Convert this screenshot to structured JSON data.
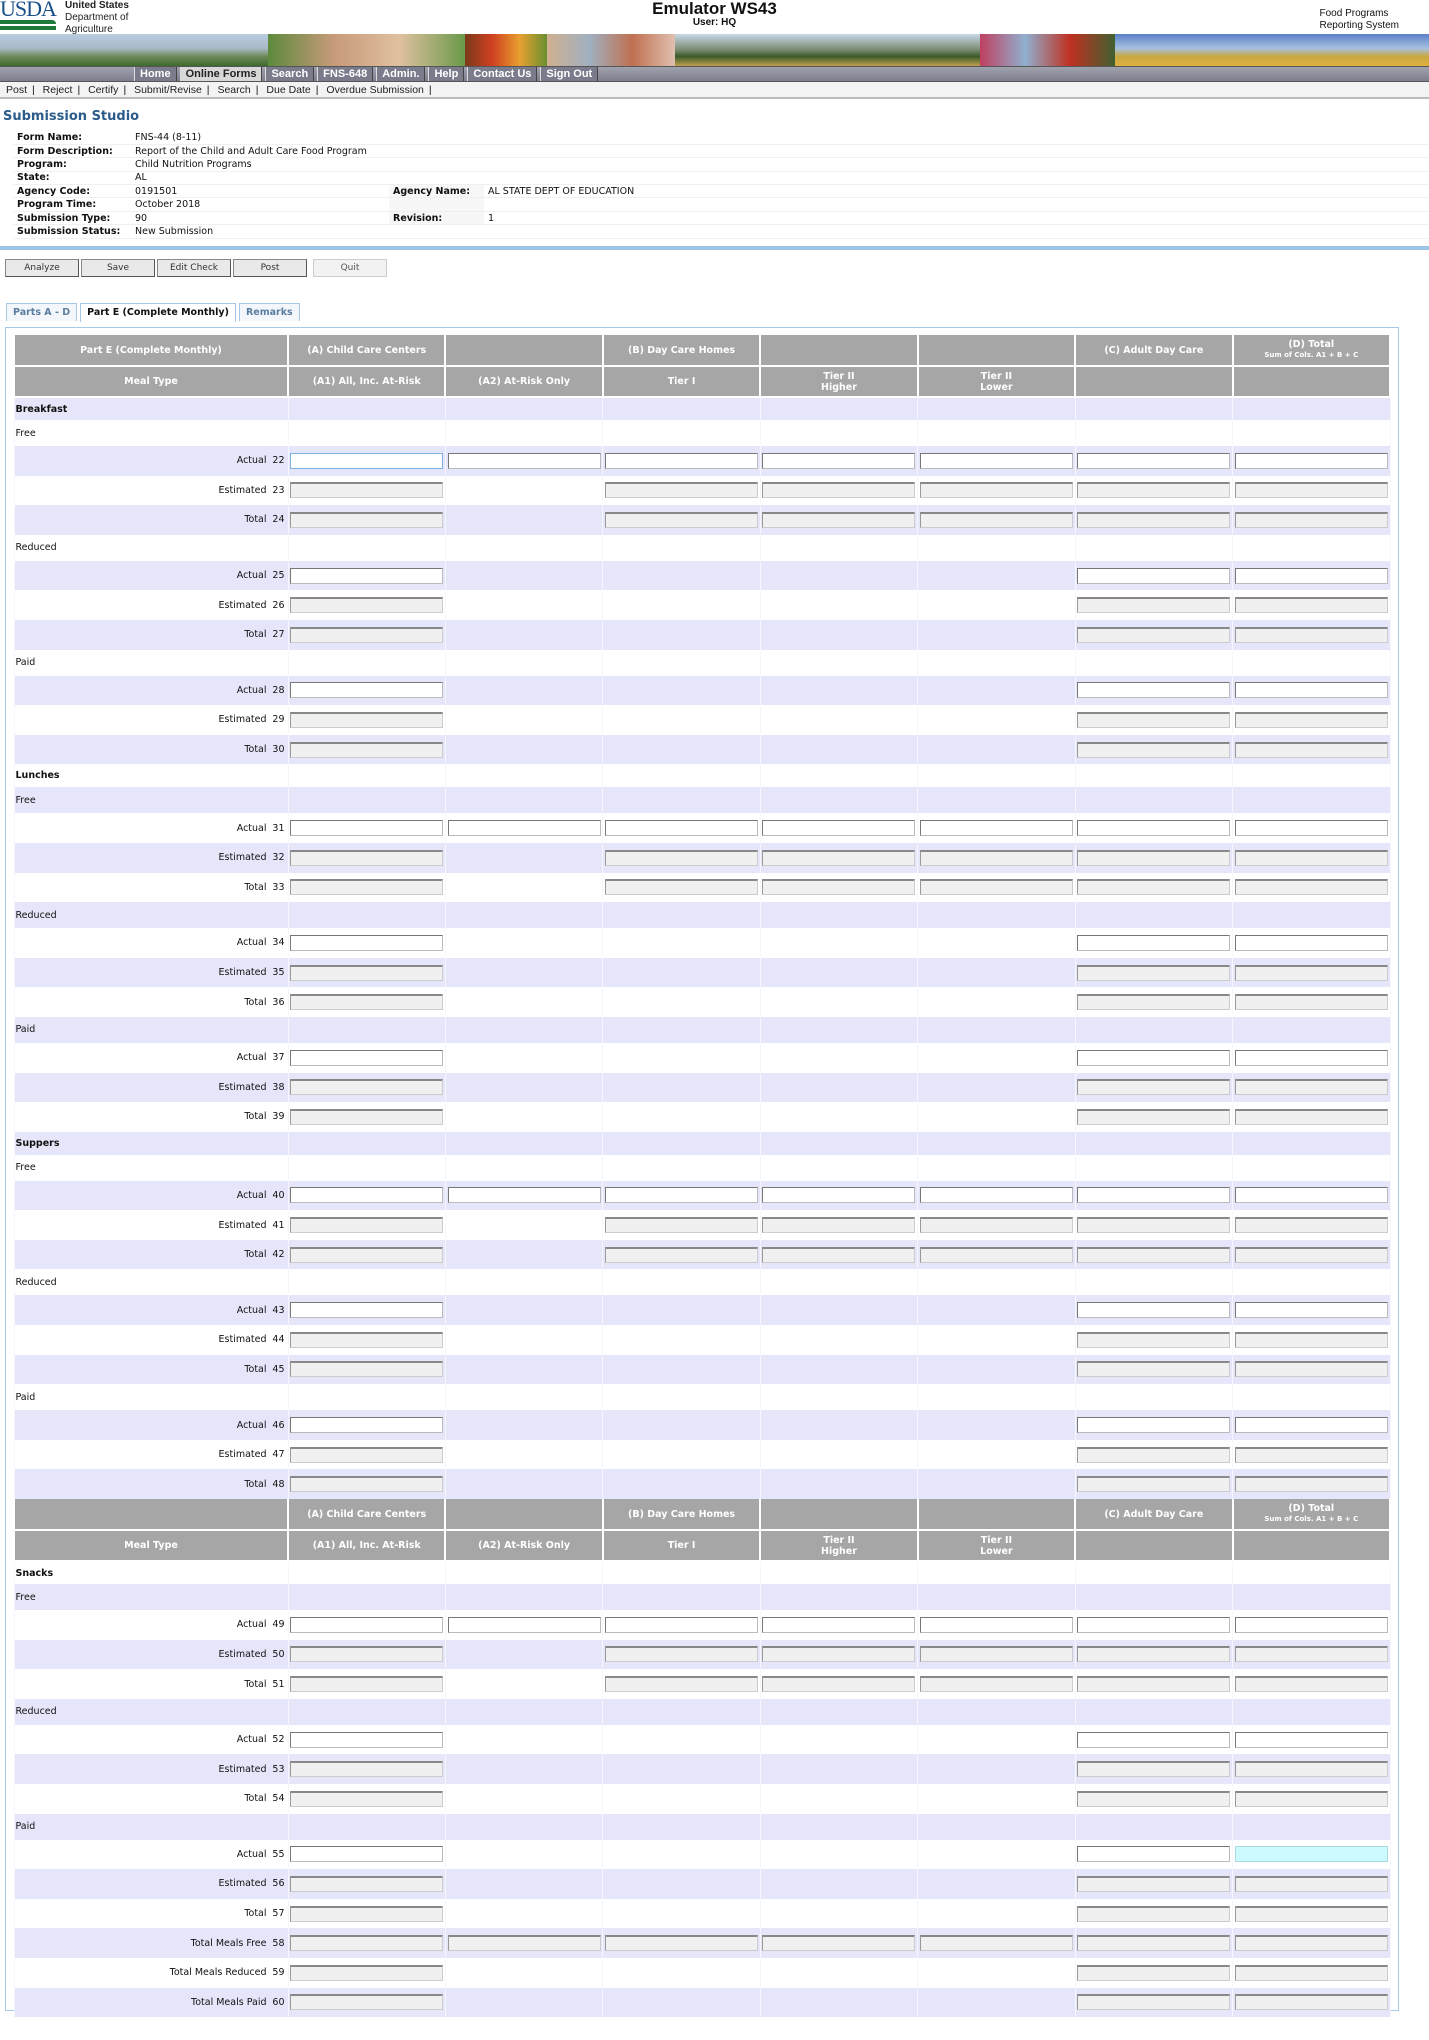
{
  "header": {
    "logo_text": "USDA",
    "department": [
      "United States",
      "Department of",
      "Agriculture"
    ],
    "title": "Emulator WS43",
    "user": "User: HQ",
    "system_name": [
      "Food Programs",
      "Reporting System"
    ]
  },
  "nav": {
    "items": [
      "Home",
      "Online Forms",
      "Search",
      "FNS-648",
      "Admin.",
      "Help",
      "Contact Us",
      "Sign Out"
    ],
    "active": "Online Forms"
  },
  "subnav": {
    "items": [
      "Post",
      "Reject",
      "Certify",
      "Submit/Revise",
      "Search",
      "Due Date",
      "Overdue Submission"
    ]
  },
  "page_title": "Submission Studio",
  "info": {
    "form_name": {
      "label": "Form Name:",
      "value": "FNS-44 (8-11)"
    },
    "form_description": {
      "label": "Form Description:",
      "value": "Report of the Child and Adult Care Food Program"
    },
    "program": {
      "label": "Program:",
      "value": "Child Nutrition Programs"
    },
    "state": {
      "label": "State:",
      "value": "AL"
    },
    "agency_code": {
      "label": "Agency Code:",
      "value": "0191501"
    },
    "agency_name": {
      "label": "Agency Name:",
      "value": "AL STATE DEPT OF EDUCATION"
    },
    "program_time": {
      "label": "Program Time:",
      "value": "October 2018"
    },
    "submission_type": {
      "label": "Submission Type:",
      "value": "90"
    },
    "revision": {
      "label": "Revision:",
      "value": "1"
    },
    "submission_status": {
      "label": "Submission Status:",
      "value": "New Submission"
    }
  },
  "actions": {
    "analyze": "Analyze",
    "save": "Save",
    "edit_check": "Edit Check",
    "post": "Post",
    "quit": "Quit"
  },
  "tabs": [
    {
      "label": "Parts A - D",
      "active": false
    },
    {
      "label": "Part E (Complete Monthly)",
      "active": true
    },
    {
      "label": "Remarks",
      "active": false
    }
  ],
  "grid": {
    "header_row1": [
      "Part E (Complete Monthly)",
      "(A) Child Care Centers",
      "",
      "(B) Day Care Homes",
      "",
      "",
      "(C) Adult Day Care",
      "(D) Total"
    ],
    "header_row1_repeat_first": "",
    "total_note": "Sum of Cols. A1 + B + C",
    "header_row2": [
      "Meal Type",
      "(A1) All, Inc. At-Risk",
      "(A2) At-Risk Only",
      "Tier I",
      "Tier II\nHigher",
      "Tier II\nLower",
      "",
      ""
    ],
    "cell_legend": {
      "E": "editable",
      "R": "read-only",
      "C": "highlighted",
      "-": "no field"
    },
    "colors": {
      "header": "#a6a6a6",
      "stripe": "#e6e6fa",
      "highlight": "#ccfaff",
      "focus": "#7fb2e0"
    },
    "focused_line": "22",
    "rows": [
      {
        "type": "meal",
        "label": "Breakfast"
      },
      {
        "type": "sub",
        "label": "Free"
      },
      {
        "type": "line",
        "label": "Actual",
        "line": "22",
        "cells": "EEEEEEE"
      },
      {
        "type": "line",
        "label": "Estimated",
        "line": "23",
        "cells": "R-RRRRR"
      },
      {
        "type": "line",
        "label": "Total",
        "line": "24",
        "cells": "R-RRRRR"
      },
      {
        "type": "sub",
        "label": "Reduced"
      },
      {
        "type": "line",
        "label": "Actual",
        "line": "25",
        "cells": "E----EE"
      },
      {
        "type": "line",
        "label": "Estimated",
        "line": "26",
        "cells": "R----RR"
      },
      {
        "type": "line",
        "label": "Total",
        "line": "27",
        "cells": "R----RR"
      },
      {
        "type": "sub",
        "label": "Paid"
      },
      {
        "type": "line",
        "label": "Actual",
        "line": "28",
        "cells": "E----EE"
      },
      {
        "type": "line",
        "label": "Estimated",
        "line": "29",
        "cells": "R----RR"
      },
      {
        "type": "line",
        "label": "Total",
        "line": "30",
        "cells": "R----RR"
      },
      {
        "type": "meal",
        "label": "Lunches"
      },
      {
        "type": "sub",
        "label": "Free"
      },
      {
        "type": "line",
        "label": "Actual",
        "line": "31",
        "cells": "EEEEEEE"
      },
      {
        "type": "line",
        "label": "Estimated",
        "line": "32",
        "cells": "R-RRRRR"
      },
      {
        "type": "line",
        "label": "Total",
        "line": "33",
        "cells": "R-RRRRR"
      },
      {
        "type": "sub",
        "label": "Reduced"
      },
      {
        "type": "line",
        "label": "Actual",
        "line": "34",
        "cells": "E----EE"
      },
      {
        "type": "line",
        "label": "Estimated",
        "line": "35",
        "cells": "R----RR"
      },
      {
        "type": "line",
        "label": "Total",
        "line": "36",
        "cells": "R----RR"
      },
      {
        "type": "sub",
        "label": "Paid"
      },
      {
        "type": "line",
        "label": "Actual",
        "line": "37",
        "cells": "E----EE"
      },
      {
        "type": "line",
        "label": "Estimated",
        "line": "38",
        "cells": "R----RR"
      },
      {
        "type": "line",
        "label": "Total",
        "line": "39",
        "cells": "R----RR"
      },
      {
        "type": "meal",
        "label": "Suppers"
      },
      {
        "type": "sub",
        "label": "Free"
      },
      {
        "type": "line",
        "label": "Actual",
        "line": "40",
        "cells": "EEEEEEE"
      },
      {
        "type": "line",
        "label": "Estimated",
        "line": "41",
        "cells": "R-RRRRR"
      },
      {
        "type": "line",
        "label": "Total",
        "line": "42",
        "cells": "R-RRRRR"
      },
      {
        "type": "sub",
        "label": "Reduced"
      },
      {
        "type": "line",
        "label": "Actual",
        "line": "43",
        "cells": "E----EE"
      },
      {
        "type": "line",
        "label": "Estimated",
        "line": "44",
        "cells": "R----RR"
      },
      {
        "type": "line",
        "label": "Total",
        "line": "45",
        "cells": "R----RR"
      },
      {
        "type": "sub",
        "label": "Paid"
      },
      {
        "type": "line",
        "label": "Actual",
        "line": "46",
        "cells": "E----EE"
      },
      {
        "type": "line",
        "label": "Estimated",
        "line": "47",
        "cells": "R----RR"
      },
      {
        "type": "line",
        "label": "Total",
        "line": "48",
        "cells": "R----RR"
      },
      {
        "type": "header"
      },
      {
        "type": "meal",
        "label": "Snacks"
      },
      {
        "type": "sub",
        "label": "Free"
      },
      {
        "type": "line",
        "label": "Actual",
        "line": "49",
        "cells": "EEEEEEE"
      },
      {
        "type": "line",
        "label": "Estimated",
        "line": "50",
        "cells": "R-RRRRR"
      },
      {
        "type": "line",
        "label": "Total",
        "line": "51",
        "cells": "R-RRRRR"
      },
      {
        "type": "sub",
        "label": "Reduced"
      },
      {
        "type": "line",
        "label": "Actual",
        "line": "52",
        "cells": "E----EE"
      },
      {
        "type": "line",
        "label": "Estimated",
        "line": "53",
        "cells": "R----RR"
      },
      {
        "type": "line",
        "label": "Total",
        "line": "54",
        "cells": "R----RR"
      },
      {
        "type": "sub",
        "label": "Paid"
      },
      {
        "type": "line",
        "label": "Actual",
        "line": "55",
        "cells": "E----EC"
      },
      {
        "type": "line",
        "label": "Estimated",
        "line": "56",
        "cells": "R----RR"
      },
      {
        "type": "line",
        "label": "Total",
        "line": "57",
        "cells": "R----RR"
      },
      {
        "type": "line",
        "label": "Total Meals Free",
        "line": "58",
        "cells": "RRRRRRR"
      },
      {
        "type": "line",
        "label": "Total Meals Reduced",
        "line": "59",
        "cells": "R----RR"
      },
      {
        "type": "line",
        "label": "Total Meals Paid",
        "line": "60",
        "cells": "R----RR"
      }
    ]
  }
}
